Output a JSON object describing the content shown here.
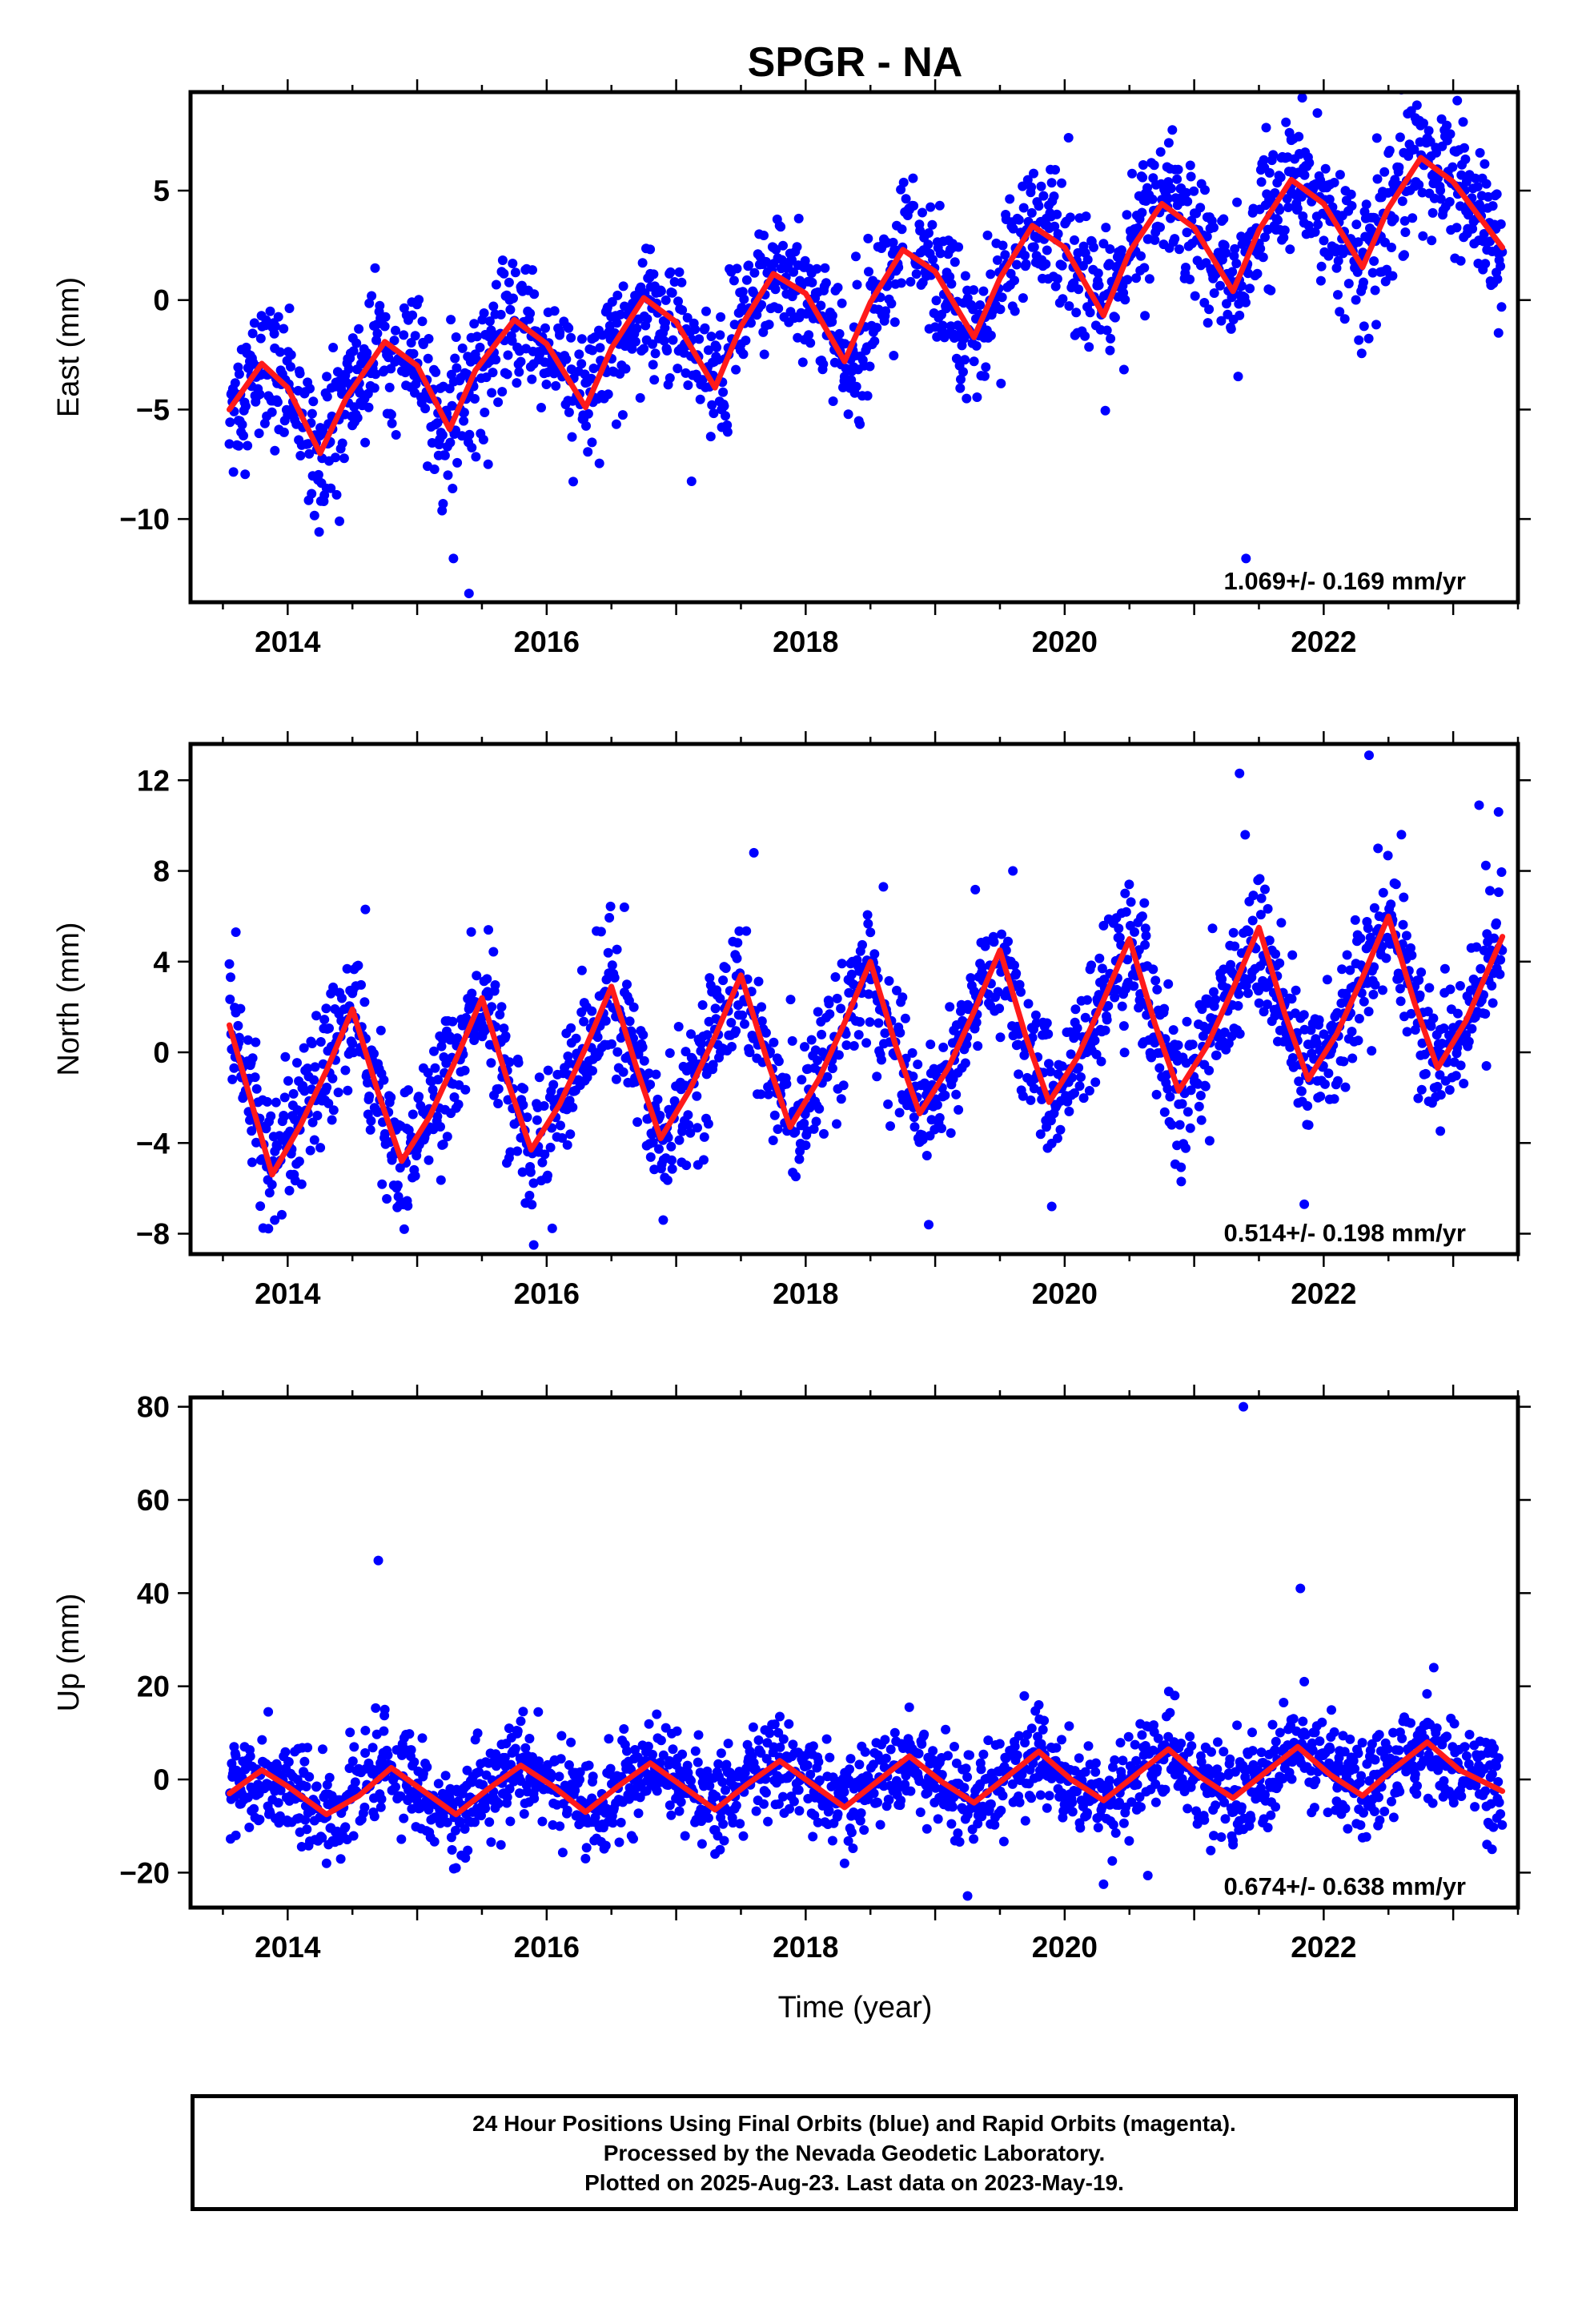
{
  "title": "SPGR - NA",
  "xlabel": "Time (year)",
  "caption": {
    "line1": "24 Hour Positions Using Final Orbits (blue) and Rapid Orbits (magenta).",
    "line2": "Processed by the Nevada Geodetic Laboratory.",
    "line3": "Plotted on 2025-Aug-23. Last data on 2023-May-19."
  },
  "colors": {
    "points": "#0000ff",
    "fit": "#ff1a1a"
  },
  "chart_data": [
    {
      "type": "scatter",
      "component": "East",
      "ylabel": "East (mm)",
      "xlim": [
        2013.25,
        2023.5
      ],
      "ylim": [
        -13.8,
        9.5
      ],
      "yticks": [
        5,
        0,
        -5,
        -10
      ],
      "xticks": [
        2014,
        2016,
        2018,
        2020,
        2022
      ],
      "rate_label": "1.069+/- 0.169 mm/yr",
      "fit_x": [
        2013.55,
        2013.8,
        2014.0,
        2014.25,
        2014.45,
        2014.75,
        2015.0,
        2015.25,
        2015.45,
        2015.75,
        2016.0,
        2016.3,
        2016.5,
        2016.75,
        2017.0,
        2017.3,
        2017.5,
        2017.75,
        2018.0,
        2018.3,
        2018.5,
        2018.75,
        2019.0,
        2019.3,
        2019.5,
        2019.75,
        2020.0,
        2020.3,
        2020.5,
        2020.75,
        2021.0,
        2021.3,
        2021.5,
        2021.75,
        2022.0,
        2022.3,
        2022.5,
        2022.75,
        2023.0,
        2023.38
      ],
      "fit_y": [
        -5.0,
        -2.9,
        -4.0,
        -7.0,
        -4.5,
        -1.9,
        -3.0,
        -5.9,
        -3.2,
        -0.9,
        -2.0,
        -4.9,
        -2.2,
        0.1,
        -1.0,
        -4.0,
        -1.2,
        1.2,
        0.3,
        -2.8,
        -0.1,
        2.3,
        1.3,
        -1.7,
        1.0,
        3.4,
        2.4,
        -0.7,
        2.2,
        4.4,
        3.3,
        0.4,
        3.2,
        5.5,
        4.4,
        1.5,
        4.2,
        6.5,
        5.4,
        2.4
      ],
      "points_x": [
        2013.62,
        2013.9,
        2014.3,
        2014.4,
        2014.75,
        2015.2,
        2015.28,
        2015.4,
        2015.8,
        2016.1,
        2016.35,
        2016.8,
        2017.1,
        2017.35,
        2017.75,
        2018.05,
        2018.3,
        2018.8,
        2019.1,
        2019.3,
        2019.8,
        2020.1,
        2020.35,
        2020.8,
        2021.1,
        2021.35,
        2021.4,
        2021.75,
        2022.05,
        2022.3,
        2022.72,
        2023.05,
        2023.35
      ],
      "points_y": [
        -5.5,
        -2.2,
        -8.6,
        -10.1,
        -1.2,
        -9.3,
        -11.8,
        -13.4,
        0.6,
        -1.6,
        -6.5,
        1.2,
        -2.0,
        -5.0,
        2.4,
        0.8,
        -3.5,
        4.2,
        2.1,
        -2.8,
        4.3,
        1.1,
        -2.3,
        5.4,
        2.9,
        -0.7,
        -11.8,
        7.3,
        3.6,
        0.6,
        8.9,
        4.9,
        -1.5
      ]
    },
    {
      "type": "scatter",
      "component": "North",
      "ylabel": "North (mm)",
      "xlim": [
        2013.25,
        2023.5
      ],
      "ylim": [
        -8.9,
        13.6
      ],
      "yticks": [
        12,
        8,
        4,
        0,
        -4,
        -8
      ],
      "xticks": [
        2014,
        2016,
        2018,
        2020,
        2022
      ],
      "rate_label": "0.514+/- 0.198 mm/yr",
      "fit_x": [
        2013.55,
        2013.88,
        2014.1,
        2014.3,
        2014.5,
        2014.7,
        2014.88,
        2015.1,
        2015.3,
        2015.5,
        2015.7,
        2015.88,
        2016.1,
        2016.3,
        2016.5,
        2016.7,
        2016.88,
        2017.1,
        2017.3,
        2017.5,
        2017.7,
        2017.88,
        2018.1,
        2018.3,
        2018.5,
        2018.7,
        2018.88,
        2019.1,
        2019.3,
        2019.5,
        2019.7,
        2019.88,
        2020.1,
        2020.3,
        2020.5,
        2020.7,
        2020.88,
        2021.1,
        2021.3,
        2021.5,
        2021.7,
        2021.88,
        2022.1,
        2022.3,
        2022.5,
        2022.7,
        2022.88,
        2023.1,
        2023.38
      ],
      "fit_y": [
        1.2,
        -5.4,
        -3.2,
        -0.8,
        1.9,
        -1.8,
        -4.8,
        -2.8,
        -0.3,
        2.4,
        -1.3,
        -4.3,
        -2.3,
        0.2,
        2.9,
        -0.8,
        -3.8,
        -1.7,
        0.7,
        3.4,
        -0.3,
        -3.3,
        -1.2,
        1.3,
        4.0,
        0.2,
        -2.7,
        -0.7,
        1.8,
        4.5,
        0.7,
        -2.2,
        -0.2,
        2.3,
        5.0,
        1.2,
        -1.7,
        0.3,
        2.8,
        5.5,
        1.7,
        -1.2,
        0.8,
        3.3,
        6.0,
        2.2,
        -0.7,
        1.4,
        5.1
      ],
      "points_x": [
        2013.6,
        2013.9,
        2014.5,
        2014.6,
        2014.9,
        2015.55,
        2015.9,
        2016.6,
        2016.9,
        2017.6,
        2017.9,
        2018.6,
        2018.95,
        2019.6,
        2019.9,
        2020.6,
        2020.9,
        2021.35,
        2021.6,
        2021.85,
        2022.35,
        2022.6,
        2022.9,
        2023.2,
        2023.35
      ],
      "points_y": [
        5.3,
        -7.4,
        2.6,
        6.3,
        -7.8,
        5.4,
        -8.5,
        6.4,
        -7.4,
        8.8,
        -5.3,
        7.3,
        -7.6,
        8.0,
        -6.8,
        6.0,
        -5.7,
        12.3,
        4.5,
        -6.7,
        13.1,
        9.6,
        1.0,
        10.9,
        10.6
      ]
    },
    {
      "type": "scatter",
      "component": "Up",
      "ylabel": "Up (mm)",
      "xlim": [
        2013.25,
        2023.5
      ],
      "ylim": [
        -27.5,
        82
      ],
      "yticks": [
        80,
        60,
        40,
        20,
        0,
        -20
      ],
      "xticks": [
        2014,
        2016,
        2018,
        2020,
        2022
      ],
      "rate_label": "0.674+/- 0.638 mm/yr",
      "fit_x": [
        2013.55,
        2013.8,
        2014.0,
        2014.3,
        2014.55,
        2014.8,
        2015.05,
        2015.3,
        2015.55,
        2015.8,
        2016.05,
        2016.3,
        2016.55,
        2016.8,
        2017.05,
        2017.3,
        2017.55,
        2017.8,
        2018.05,
        2018.3,
        2018.55,
        2018.8,
        2019.05,
        2019.3,
        2019.55,
        2019.8,
        2020.05,
        2020.3,
        2020.55,
        2020.8,
        2021.05,
        2021.3,
        2021.55,
        2021.8,
        2022.05,
        2022.3,
        2022.55,
        2022.8,
        2023.05,
        2023.38
      ],
      "fit_y": [
        -3.0,
        2.0,
        -1.5,
        -7.5,
        -3.5,
        2.5,
        -2.5,
        -7.5,
        -2.0,
        3.0,
        -1.5,
        -7.0,
        -1.5,
        3.5,
        -1.5,
        -6.5,
        -1.0,
        4.0,
        -1.0,
        -6.0,
        -0.5,
        5.0,
        -0.5,
        -5.0,
        0.5,
        6.0,
        0.0,
        -4.5,
        1.0,
        6.5,
        0.5,
        -4.0,
        1.5,
        7.0,
        1.0,
        -3.5,
        2.5,
        8.0,
        2.0,
        -2.5
      ],
      "points_x": [
        2013.6,
        2013.85,
        2014.3,
        2014.6,
        2014.7,
        2014.75,
        2015.3,
        2015.8,
        2016.3,
        2016.85,
        2017.3,
        2017.8,
        2018.3,
        2018.8,
        2019.25,
        2019.8,
        2020.3,
        2020.85,
        2021.3,
        2021.38,
        2021.82,
        2021.85,
        2022.3,
        2022.85,
        2023.3
      ],
      "points_y": [
        -12.0,
        14.5,
        -18.0,
        10.5,
        47.0,
        15.0,
        -19.0,
        12.5,
        -17.0,
        14.0,
        -16.0,
        13.5,
        -18.0,
        15.5,
        -25.0,
        16.0,
        -22.5,
        18.0,
        -14.0,
        80.0,
        41.0,
        21.0,
        -12.5,
        24.0,
        -15.0
      ]
    }
  ]
}
